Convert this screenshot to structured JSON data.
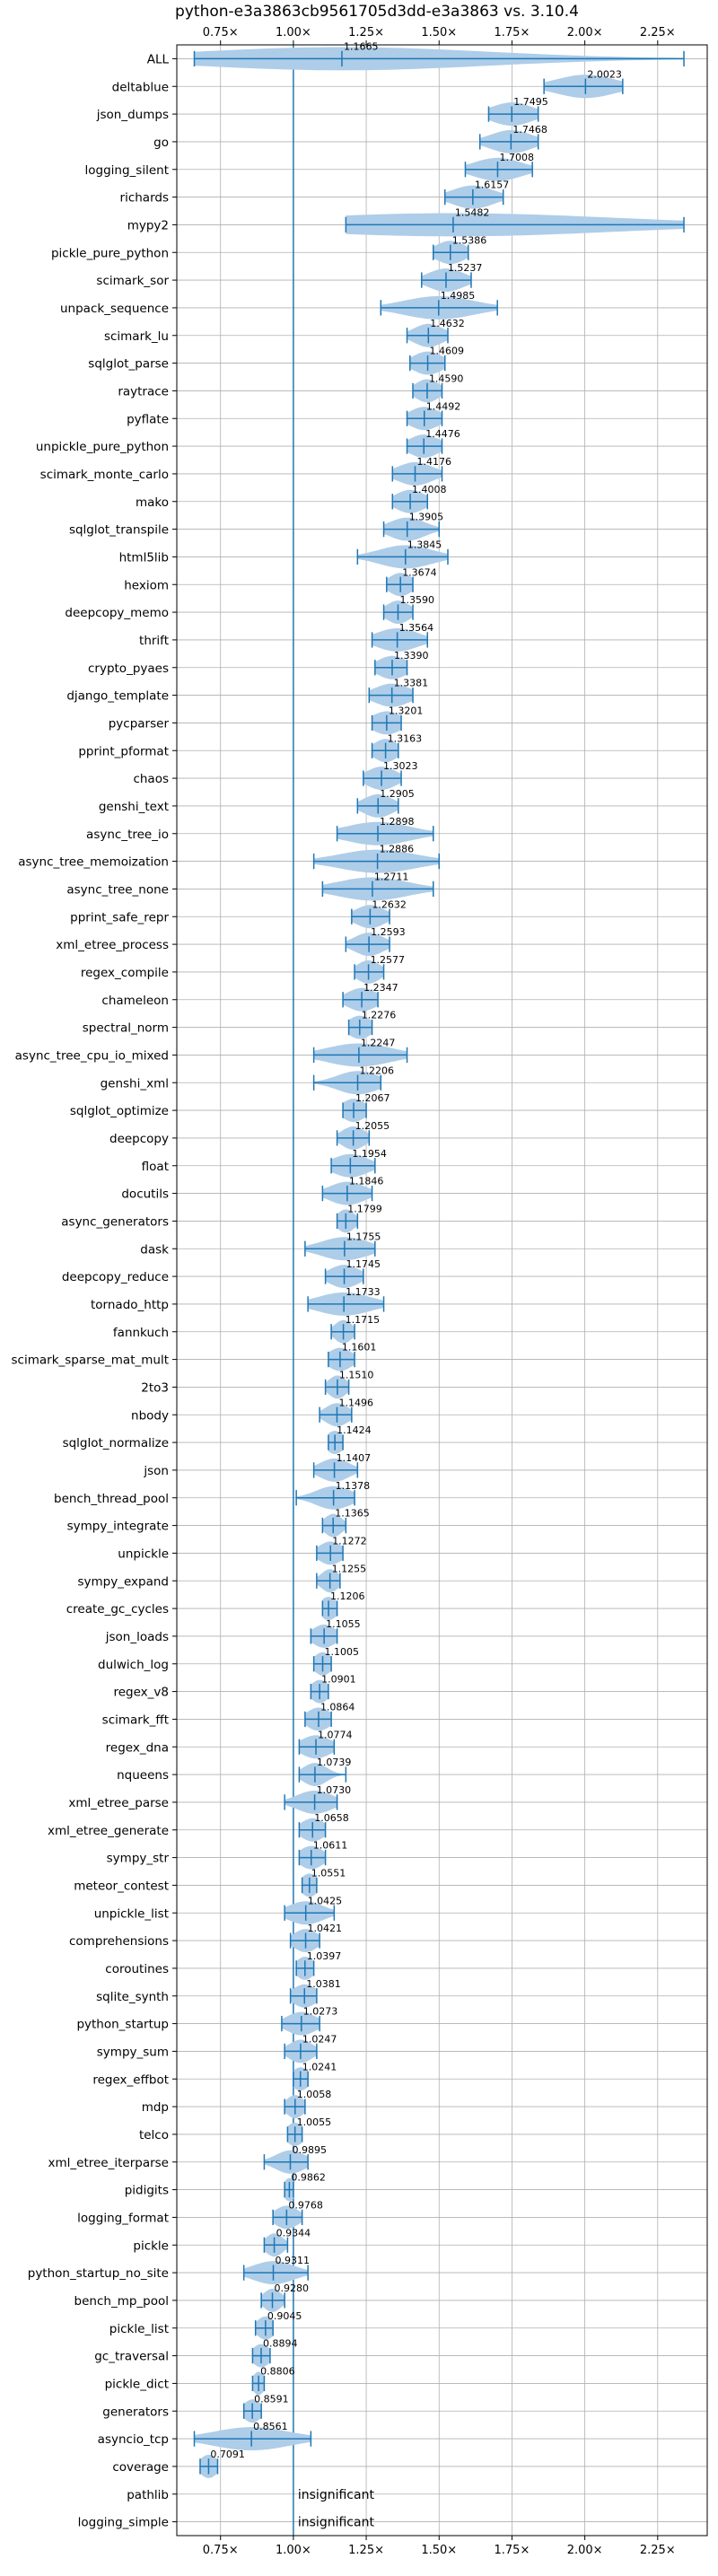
{
  "chart_data": {
    "type": "violin",
    "title": "python-e3a3863cb9561705d3dd-e3a3863 vs. 3.10.4",
    "xlabel": "",
    "ylabel": "",
    "xlim": [
      0.6,
      2.42
    ],
    "xticks": [
      0.75,
      1.0,
      1.25,
      1.5,
      1.75,
      2.0,
      2.25
    ],
    "xtick_labels": [
      "0.75×",
      "1.00×",
      "1.25×",
      "1.50×",
      "1.75×",
      "2.00×",
      "2.25×"
    ],
    "xticks_top_and_bottom": true,
    "reference_line": 1.0,
    "grid": true,
    "colors": {
      "violin": "#aecde9",
      "whisker": "#1f77b4",
      "reference": "#1f77b4",
      "grid": "#b0b0b0"
    },
    "rows": [
      {
        "name": "ALL",
        "value": 1.1665,
        "label": "1.1665",
        "low": 0.66,
        "high": 2.34,
        "spread": 0.5
      },
      {
        "name": "deltablue",
        "value": 2.0023,
        "label": "2.0023",
        "low": 1.86,
        "high": 2.13,
        "spread": 0.1
      },
      {
        "name": "json_dumps",
        "value": 1.7495,
        "label": "1.7495",
        "low": 1.67,
        "high": 1.84,
        "spread": 0.07
      },
      {
        "name": "go",
        "value": 1.7468,
        "label": "1.7468",
        "low": 1.64,
        "high": 1.84,
        "spread": 0.07
      },
      {
        "name": "logging_silent",
        "value": 1.7008,
        "label": "1.7008",
        "low": 1.59,
        "high": 1.82,
        "spread": 0.08
      },
      {
        "name": "richards",
        "value": 1.6157,
        "label": "1.6157",
        "low": 1.52,
        "high": 1.72,
        "spread": 0.07
      },
      {
        "name": "mypy2",
        "value": 1.5482,
        "label": "1.5482",
        "low": 1.18,
        "high": 2.34,
        "spread": 0.55
      },
      {
        "name": "pickle_pure_python",
        "value": 1.5386,
        "label": "1.5386",
        "low": 1.48,
        "high": 1.6,
        "spread": 0.05
      },
      {
        "name": "scimark_sor",
        "value": 1.5237,
        "label": "1.5237",
        "low": 1.44,
        "high": 1.61,
        "spread": 0.06
      },
      {
        "name": "unpack_sequence",
        "value": 1.4985,
        "label": "1.4985",
        "low": 1.3,
        "high": 1.7,
        "spread": 0.12
      },
      {
        "name": "scimark_lu",
        "value": 1.4632,
        "label": "1.4632",
        "low": 1.39,
        "high": 1.53,
        "spread": 0.05
      },
      {
        "name": "sqlglot_parse",
        "value": 1.4609,
        "label": "1.4609",
        "low": 1.4,
        "high": 1.52,
        "spread": 0.05
      },
      {
        "name": "raytrace",
        "value": 1.459,
        "label": "1.4590",
        "low": 1.41,
        "high": 1.51,
        "spread": 0.04
      },
      {
        "name": "pyflate",
        "value": 1.4492,
        "label": "1.4492",
        "low": 1.39,
        "high": 1.51,
        "spread": 0.05
      },
      {
        "name": "unpickle_pure_python",
        "value": 1.4476,
        "label": "1.4476",
        "low": 1.39,
        "high": 1.51,
        "spread": 0.05
      },
      {
        "name": "scimark_monte_carlo",
        "value": 1.4176,
        "label": "1.4176",
        "low": 1.34,
        "high": 1.51,
        "spread": 0.06
      },
      {
        "name": "mako",
        "value": 1.4008,
        "label": "1.4008",
        "low": 1.34,
        "high": 1.46,
        "spread": 0.05
      },
      {
        "name": "sqlglot_transpile",
        "value": 1.3905,
        "label": "1.3905",
        "low": 1.31,
        "high": 1.5,
        "spread": 0.06
      },
      {
        "name": "html5lib",
        "value": 1.3845,
        "label": "1.3845",
        "low": 1.22,
        "high": 1.53,
        "spread": 0.09
      },
      {
        "name": "hexiom",
        "value": 1.3674,
        "label": "1.3674",
        "low": 1.32,
        "high": 1.41,
        "spread": 0.04
      },
      {
        "name": "deepcopy_memo",
        "value": 1.359,
        "label": "1.3590",
        "low": 1.31,
        "high": 1.41,
        "spread": 0.04
      },
      {
        "name": "thrift",
        "value": 1.3564,
        "label": "1.3564",
        "low": 1.27,
        "high": 1.46,
        "spread": 0.07
      },
      {
        "name": "crypto_pyaes",
        "value": 1.339,
        "label": "1.3390",
        "low": 1.28,
        "high": 1.39,
        "spread": 0.05
      },
      {
        "name": "django_template",
        "value": 1.3381,
        "label": "1.3381",
        "low": 1.26,
        "high": 1.41,
        "spread": 0.06
      },
      {
        "name": "pycparser",
        "value": 1.3201,
        "label": "1.3201",
        "low": 1.27,
        "high": 1.37,
        "spread": 0.05
      },
      {
        "name": "pprint_pformat",
        "value": 1.3163,
        "label": "1.3163",
        "low": 1.27,
        "high": 1.36,
        "spread": 0.04
      },
      {
        "name": "chaos",
        "value": 1.3023,
        "label": "1.3023",
        "low": 1.24,
        "high": 1.37,
        "spread": 0.05
      },
      {
        "name": "genshi_text",
        "value": 1.2905,
        "label": "1.2905",
        "low": 1.22,
        "high": 1.36,
        "spread": 0.05
      },
      {
        "name": "async_tree_io",
        "value": 1.2898,
        "label": "1.2898",
        "low": 1.15,
        "high": 1.48,
        "spread": 0.11
      },
      {
        "name": "async_tree_memoization",
        "value": 1.2886,
        "label": "1.2886",
        "low": 1.07,
        "high": 1.5,
        "spread": 0.13
      },
      {
        "name": "async_tree_none",
        "value": 1.2711,
        "label": "1.2711",
        "low": 1.1,
        "high": 1.48,
        "spread": 0.12
      },
      {
        "name": "pprint_safe_repr",
        "value": 1.2632,
        "label": "1.2632",
        "low": 1.2,
        "high": 1.33,
        "spread": 0.05
      },
      {
        "name": "xml_etree_process",
        "value": 1.2593,
        "label": "1.2593",
        "low": 1.18,
        "high": 1.33,
        "spread": 0.05
      },
      {
        "name": "regex_compile",
        "value": 1.2577,
        "label": "1.2577",
        "low": 1.21,
        "high": 1.31,
        "spread": 0.04
      },
      {
        "name": "chameleon",
        "value": 1.2347,
        "label": "1.2347",
        "low": 1.17,
        "high": 1.29,
        "spread": 0.05
      },
      {
        "name": "spectral_norm",
        "value": 1.2276,
        "label": "1.2276",
        "low": 1.19,
        "high": 1.27,
        "spread": 0.04
      },
      {
        "name": "async_tree_cpu_io_mixed",
        "value": 1.2247,
        "label": "1.2247",
        "low": 1.07,
        "high": 1.39,
        "spread": 0.11
      },
      {
        "name": "genshi_xml",
        "value": 1.2206,
        "label": "1.2206",
        "low": 1.07,
        "high": 1.3,
        "spread": 0.07
      },
      {
        "name": "sqlglot_optimize",
        "value": 1.2067,
        "label": "1.2067",
        "low": 1.17,
        "high": 1.25,
        "spread": 0.04
      },
      {
        "name": "deepcopy",
        "value": 1.2055,
        "label": "1.2055",
        "low": 1.15,
        "high": 1.26,
        "spread": 0.04
      },
      {
        "name": "float",
        "value": 1.1954,
        "label": "1.1954",
        "low": 1.13,
        "high": 1.28,
        "spread": 0.06
      },
      {
        "name": "docutils",
        "value": 1.1846,
        "label": "1.1846",
        "low": 1.1,
        "high": 1.27,
        "spread": 0.06
      },
      {
        "name": "async_generators",
        "value": 1.1799,
        "label": "1.1799",
        "low": 1.15,
        "high": 1.22,
        "spread": 0.03
      },
      {
        "name": "dask",
        "value": 1.1755,
        "label": "1.1755",
        "low": 1.04,
        "high": 1.28,
        "spread": 0.08
      },
      {
        "name": "deepcopy_reduce",
        "value": 1.1745,
        "label": "1.1745",
        "low": 1.11,
        "high": 1.24,
        "spread": 0.05
      },
      {
        "name": "tornado_http",
        "value": 1.1733,
        "label": "1.1733",
        "low": 1.05,
        "high": 1.31,
        "spread": 0.09
      },
      {
        "name": "fannkuch",
        "value": 1.1715,
        "label": "1.1715",
        "low": 1.13,
        "high": 1.21,
        "spread": 0.03
      },
      {
        "name": "scimark_sparse_mat_mult",
        "value": 1.1601,
        "label": "1.1601",
        "low": 1.12,
        "high": 1.21,
        "spread": 0.04
      },
      {
        "name": "2to3",
        "value": 1.151,
        "label": "1.1510",
        "low": 1.11,
        "high": 1.19,
        "spread": 0.03
      },
      {
        "name": "nbody",
        "value": 1.1496,
        "label": "1.1496",
        "low": 1.09,
        "high": 1.2,
        "spread": 0.04
      },
      {
        "name": "sqlglot_normalize",
        "value": 1.1424,
        "label": "1.1424",
        "low": 1.12,
        "high": 1.17,
        "spread": 0.03
      },
      {
        "name": "json",
        "value": 1.1407,
        "label": "1.1407",
        "low": 1.07,
        "high": 1.22,
        "spread": 0.05
      },
      {
        "name": "bench_thread_pool",
        "value": 1.1378,
        "label": "1.1378",
        "low": 1.01,
        "high": 1.21,
        "spread": 0.06
      },
      {
        "name": "sympy_integrate",
        "value": 1.1365,
        "label": "1.1365",
        "low": 1.1,
        "high": 1.18,
        "spread": 0.03
      },
      {
        "name": "unpickle",
        "value": 1.1272,
        "label": "1.1272",
        "low": 1.08,
        "high": 1.17,
        "spread": 0.04
      },
      {
        "name": "sympy_expand",
        "value": 1.1255,
        "label": "1.1255",
        "low": 1.08,
        "high": 1.16,
        "spread": 0.03
      },
      {
        "name": "create_gc_cycles",
        "value": 1.1206,
        "label": "1.1206",
        "low": 1.1,
        "high": 1.15,
        "spread": 0.03
      },
      {
        "name": "json_loads",
        "value": 1.1055,
        "label": "1.1055",
        "low": 1.06,
        "high": 1.15,
        "spread": 0.04
      },
      {
        "name": "dulwich_log",
        "value": 1.1005,
        "label": "1.1005",
        "low": 1.07,
        "high": 1.13,
        "spread": 0.03
      },
      {
        "name": "regex_v8",
        "value": 1.0901,
        "label": "1.0901",
        "low": 1.06,
        "high": 1.12,
        "spread": 0.03
      },
      {
        "name": "scimark_fft",
        "value": 1.0864,
        "label": "1.0864",
        "low": 1.04,
        "high": 1.13,
        "spread": 0.04
      },
      {
        "name": "regex_dna",
        "value": 1.0774,
        "label": "1.0774",
        "low": 1.02,
        "high": 1.14,
        "spread": 0.05
      },
      {
        "name": "nqueens",
        "value": 1.0739,
        "label": "1.0739",
        "low": 1.02,
        "high": 1.18,
        "spread": 0.04
      },
      {
        "name": "xml_etree_parse",
        "value": 1.073,
        "label": "1.0730",
        "low": 0.97,
        "high": 1.15,
        "spread": 0.06
      },
      {
        "name": "xml_etree_generate",
        "value": 1.0658,
        "label": "1.0658",
        "low": 1.02,
        "high": 1.11,
        "spread": 0.04
      },
      {
        "name": "sympy_str",
        "value": 1.0611,
        "label": "1.0611",
        "low": 1.02,
        "high": 1.11,
        "spread": 0.04
      },
      {
        "name": "meteor_contest",
        "value": 1.0551,
        "label": "1.0551",
        "low": 1.03,
        "high": 1.08,
        "spread": 0.03
      },
      {
        "name": "unpickle_list",
        "value": 1.0425,
        "label": "1.0425",
        "low": 0.97,
        "high": 1.14,
        "spread": 0.06
      },
      {
        "name": "comprehensions",
        "value": 1.0421,
        "label": "1.0421",
        "low": 0.99,
        "high": 1.09,
        "spread": 0.04
      },
      {
        "name": "coroutines",
        "value": 1.0397,
        "label": "1.0397",
        "low": 1.01,
        "high": 1.07,
        "spread": 0.03
      },
      {
        "name": "sqlite_synth",
        "value": 1.0381,
        "label": "1.0381",
        "low": 0.99,
        "high": 1.08,
        "spread": 0.04
      },
      {
        "name": "python_startup",
        "value": 1.0273,
        "label": "1.0273",
        "low": 0.96,
        "high": 1.09,
        "spread": 0.05
      },
      {
        "name": "sympy_sum",
        "value": 1.0247,
        "label": "1.0247",
        "low": 0.97,
        "high": 1.08,
        "spread": 0.04
      },
      {
        "name": "regex_effbot",
        "value": 1.0241,
        "label": "1.0241",
        "low": 1.0,
        "high": 1.05,
        "spread": 0.03
      },
      {
        "name": "mdp",
        "value": 1.0058,
        "label": "1.0058",
        "low": 0.97,
        "high": 1.04,
        "spread": 0.03
      },
      {
        "name": "telco",
        "value": 1.0055,
        "label": "1.0055",
        "low": 0.98,
        "high": 1.03,
        "spread": 0.03
      },
      {
        "name": "xml_etree_iterparse",
        "value": 0.9895,
        "label": "0.9895",
        "low": 0.9,
        "high": 1.05,
        "spread": 0.05
      },
      {
        "name": "pidigits",
        "value": 0.9862,
        "label": "0.9862",
        "low": 0.97,
        "high": 1.0,
        "spread": 0.02
      },
      {
        "name": "logging_format",
        "value": 0.9768,
        "label": "0.9768",
        "low": 0.93,
        "high": 1.03,
        "spread": 0.04
      },
      {
        "name": "pickle",
        "value": 0.9344,
        "label": "0.9344",
        "low": 0.9,
        "high": 0.98,
        "spread": 0.03
      },
      {
        "name": "python_startup_no_site",
        "value": 0.9311,
        "label": "0.9311",
        "low": 0.83,
        "high": 1.05,
        "spread": 0.07
      },
      {
        "name": "bench_mp_pool",
        "value": 0.928,
        "label": "0.9280",
        "low": 0.89,
        "high": 0.97,
        "spread": 0.03
      },
      {
        "name": "pickle_list",
        "value": 0.9045,
        "label": "0.9045",
        "low": 0.87,
        "high": 0.93,
        "spread": 0.03
      },
      {
        "name": "gc_traversal",
        "value": 0.8894,
        "label": "0.8894",
        "low": 0.86,
        "high": 0.92,
        "spread": 0.03
      },
      {
        "name": "pickle_dict",
        "value": 0.8806,
        "label": "0.8806",
        "low": 0.86,
        "high": 0.9,
        "spread": 0.02
      },
      {
        "name": "generators",
        "value": 0.8591,
        "label": "0.8591",
        "low": 0.83,
        "high": 0.89,
        "spread": 0.03
      },
      {
        "name": "asyncio_tcp",
        "value": 0.8561,
        "label": "0.8561",
        "low": 0.66,
        "high": 1.06,
        "spread": 0.13
      },
      {
        "name": "coverage",
        "value": 0.7091,
        "label": "0.7091",
        "low": 0.68,
        "high": 0.74,
        "spread": 0.03
      },
      {
        "name": "pathlib",
        "value": null,
        "label": "insignificant",
        "low": null,
        "high": null,
        "spread": 0
      },
      {
        "name": "logging_simple",
        "value": null,
        "label": "insignificant",
        "low": null,
        "high": null,
        "spread": 0
      }
    ]
  }
}
